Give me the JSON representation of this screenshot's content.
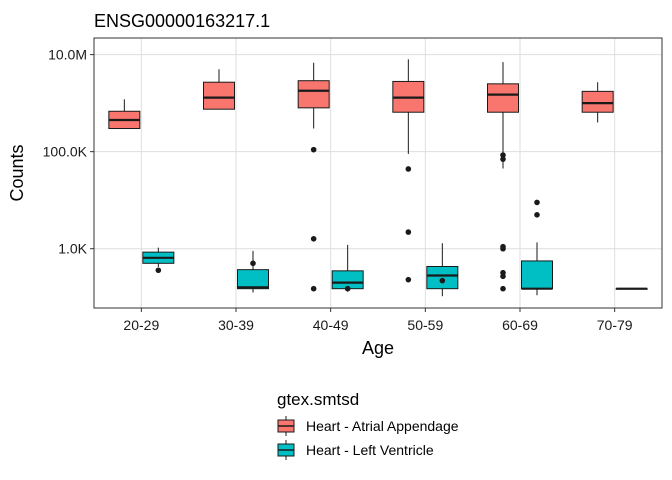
{
  "chart_data": {
    "type": "box",
    "title": "ENSG00000163217.1",
    "xlabel": "Age",
    "ylabel": "Counts",
    "y_scale": "log10",
    "ylim": [
      60,
      22000000
    ],
    "y_ticks": [
      {
        "value": 1000,
        "label": "1.0K"
      },
      {
        "value": 100000,
        "label": "100.0K"
      },
      {
        "value": 10000000,
        "label": "10.0M"
      }
    ],
    "categories": [
      "20-29",
      "30-39",
      "40-49",
      "50-59",
      "60-69",
      "70-79"
    ],
    "grid": true,
    "legend": {
      "title": "gtex.smtsd",
      "position": "bottom"
    },
    "series": [
      {
        "name": "Heart - Atrial Appendage",
        "color": "#F8766D",
        "boxes": [
          {
            "category": "20-29",
            "whisker_low": 300000,
            "q1": 300000,
            "median": 450000,
            "q3": 680000,
            "whisker_high": 1200000,
            "outliers": []
          },
          {
            "category": "30-39",
            "whisker_low": 750000,
            "q1": 750000,
            "median": 1300000,
            "q3": 2700000,
            "whisker_high": 5000000,
            "outliers": []
          },
          {
            "category": "40-49",
            "whisker_low": 300000,
            "q1": 800000,
            "median": 1800000,
            "q3": 2900000,
            "whisker_high": 6800000,
            "outliers": [
              110000,
              1600,
              150
            ]
          },
          {
            "category": "50-59",
            "whisker_low": 90000,
            "q1": 650000,
            "median": 1300000,
            "q3": 2800000,
            "whisker_high": 8000000,
            "outliers": [
              44000,
              2200,
              230
            ]
          },
          {
            "category": "60-69",
            "whisker_low": 45000,
            "q1": 650000,
            "median": 1500000,
            "q3": 2500000,
            "whisker_high": 7000000,
            "outliers": [
              85000,
              70000,
              1100,
              1000,
              320,
              270,
              150
            ]
          },
          {
            "category": "70-79",
            "whisker_low": 400000,
            "q1": 650000,
            "median": 1000000,
            "q3": 1750000,
            "whisker_high": 2700000,
            "outliers": []
          }
        ]
      },
      {
        "name": "Heart - Left Ventricle",
        "color": "#00BFC4",
        "boxes": [
          {
            "category": "20-29",
            "whisker_low": 420,
            "q1": 500,
            "median": 650,
            "q3": 850,
            "whisker_high": 1050,
            "outliers": [
              360
            ]
          },
          {
            "category": "30-39",
            "whisker_low": 125,
            "q1": 150,
            "median": 160,
            "q3": 370,
            "whisker_high": 900,
            "outliers": [
              500
            ]
          },
          {
            "category": "40-49",
            "whisker_low": 130,
            "q1": 150,
            "median": 200,
            "q3": 350,
            "whisker_high": 1200,
            "outliers": [
              150
            ]
          },
          {
            "category": "50-59",
            "whisker_low": 105,
            "q1": 150,
            "median": 280,
            "q3": 430,
            "whisker_high": 1300,
            "outliers": [
              220
            ]
          },
          {
            "category": "60-69",
            "whisker_low": 110,
            "q1": 150,
            "median": 150,
            "q3": 560,
            "whisker_high": 1350,
            "outliers": [
              9000,
              5000
            ]
          },
          {
            "category": "70-79",
            "whisker_low": 150,
            "q1": 150,
            "median": 150,
            "q3": 150,
            "whisker_high": 150,
            "outliers": []
          }
        ]
      }
    ]
  }
}
